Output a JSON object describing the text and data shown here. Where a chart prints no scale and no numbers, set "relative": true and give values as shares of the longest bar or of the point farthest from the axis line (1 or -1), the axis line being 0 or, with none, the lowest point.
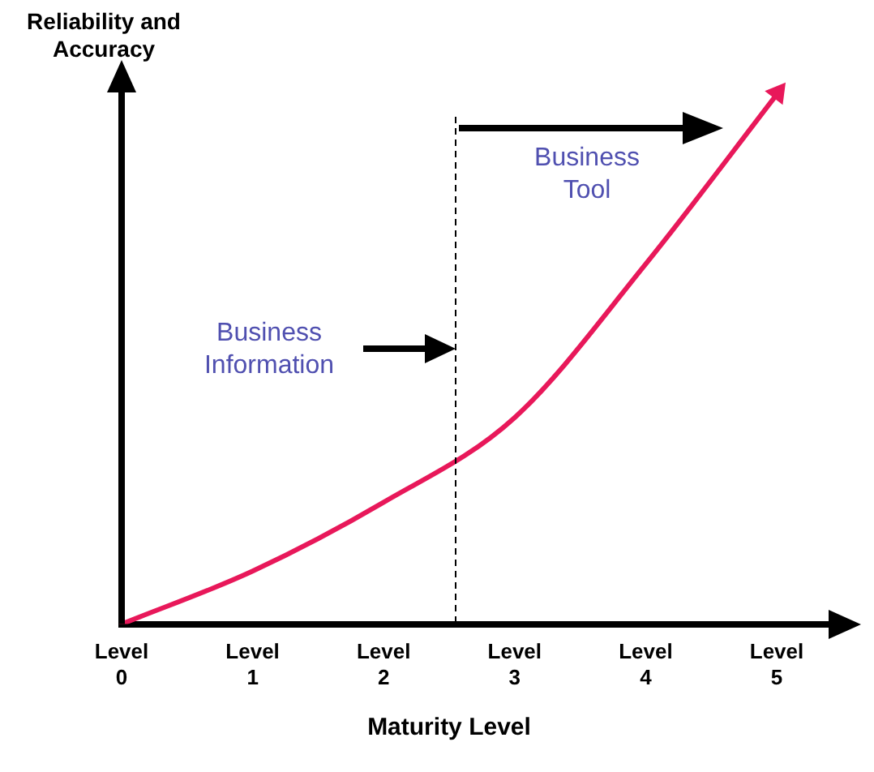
{
  "chart_data": {
    "type": "line",
    "relative": true,
    "ylabel": "Reliability and Accuracy",
    "xlabel": "Maturity Level",
    "categories": [
      "Level 0",
      "Level 1",
      "Level 2",
      "Level 3",
      "Level 4",
      "Level 5"
    ],
    "series": [
      {
        "color": "#e8185a",
        "values": [
          0,
          0.1,
          0.23,
          0.39,
          0.68,
          1
        ]
      }
    ],
    "annotations": [
      "Business Information",
      "Business Tool"
    ],
    "grid": false,
    "legend": false,
    "marker": "none",
    "line_style": "solid"
  }
}
